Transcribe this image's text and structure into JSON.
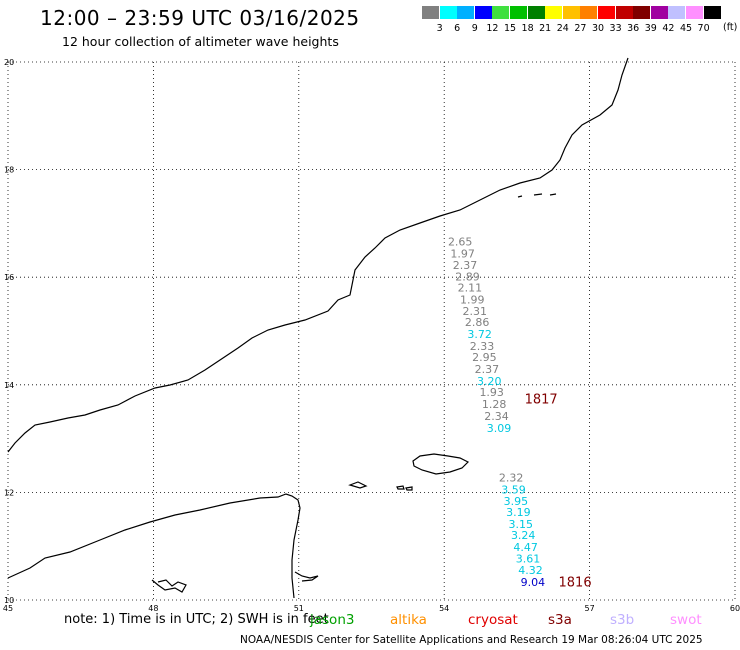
{
  "header": {
    "title": "12:00 – 23:59 UTC 03/16/2025",
    "subtitle": "12 hour collection of altimeter wave heights"
  },
  "colorbar": {
    "colors": [
      "#808080",
      "#00ffff",
      "#00b0ff",
      "#0000ff",
      "#40e040",
      "#00c000",
      "#008000",
      "#ffff00",
      "#ffc000",
      "#ff8000",
      "#ff0000",
      "#c00000",
      "#800000",
      "#a000a0",
      "#c0c0ff",
      "#ff90ff",
      "#000000"
    ],
    "labels": [
      "3",
      "6",
      "9",
      "12",
      "15",
      "18",
      "21",
      "24",
      "27",
      "30",
      "33",
      "36",
      "39",
      "42",
      "45",
      "70"
    ],
    "unit": "(ft)"
  },
  "map": {
    "lat_ticks": [
      "20",
      "18",
      "16",
      "14",
      "12",
      "10"
    ],
    "lon_ticks": [
      "45",
      "48",
      "51",
      "54",
      "57",
      "60"
    ],
    "lat_range": [
      10,
      20
    ],
    "lon_range": [
      45,
      60
    ]
  },
  "observations": [
    {
      "v": "2.65",
      "c": "#808080",
      "lon": 54.33,
      "lat": 16.59
    },
    {
      "v": "1.97",
      "c": "#808080",
      "lon": 54.38,
      "lat": 16.37
    },
    {
      "v": "2.37",
      "c": "#808080",
      "lon": 54.43,
      "lat": 16.15
    },
    {
      "v": "2.89",
      "c": "#808080",
      "lon": 54.48,
      "lat": 15.94
    },
    {
      "v": "2.11",
      "c": "#808080",
      "lon": 54.53,
      "lat": 15.73
    },
    {
      "v": "1.99",
      "c": "#808080",
      "lon": 54.58,
      "lat": 15.51
    },
    {
      "v": "2.31",
      "c": "#808080",
      "lon": 54.63,
      "lat": 15.3
    },
    {
      "v": "2.86",
      "c": "#808080",
      "lon": 54.68,
      "lat": 15.09
    },
    {
      "v": "3.72",
      "c": "#00c8e0",
      "lon": 54.73,
      "lat": 14.87
    },
    {
      "v": "2.33",
      "c": "#808080",
      "lon": 54.78,
      "lat": 14.65
    },
    {
      "v": "2.95",
      "c": "#808080",
      "lon": 54.83,
      "lat": 14.44
    },
    {
      "v": "2.37",
      "c": "#808080",
      "lon": 54.88,
      "lat": 14.22
    },
    {
      "v": "3.20",
      "c": "#00c8e0",
      "lon": 54.93,
      "lat": 14.0
    },
    {
      "v": "1.93",
      "c": "#808080",
      "lon": 54.98,
      "lat": 13.79
    },
    {
      "v": "1.28",
      "c": "#808080",
      "lon": 55.03,
      "lat": 13.57
    },
    {
      "v": "2.34",
      "c": "#808080",
      "lon": 55.08,
      "lat": 13.35
    },
    {
      "v": "3.09",
      "c": "#00c8e0",
      "lon": 55.13,
      "lat": 13.12
    },
    {
      "v": "2.32",
      "c": "#808080",
      "lon": 55.38,
      "lat": 12.2
    },
    {
      "v": "3.59",
      "c": "#00c8e0",
      "lon": 55.43,
      "lat": 11.98
    },
    {
      "v": "3.95",
      "c": "#00c8e0",
      "lon": 55.48,
      "lat": 11.77
    },
    {
      "v": "3.19",
      "c": "#00c8e0",
      "lon": 55.53,
      "lat": 11.56
    },
    {
      "v": "3.15",
      "c": "#00c8e0",
      "lon": 55.58,
      "lat": 11.34
    },
    {
      "v": "3.24",
      "c": "#00c8e0",
      "lon": 55.63,
      "lat": 11.13
    },
    {
      "v": "4.47",
      "c": "#00c8e0",
      "lon": 55.68,
      "lat": 10.91
    },
    {
      "v": "3.61",
      "c": "#00c8e0",
      "lon": 55.73,
      "lat": 10.7
    },
    {
      "v": "4.32",
      "c": "#00c8e0",
      "lon": 55.78,
      "lat": 10.48
    },
    {
      "v": "9.04",
      "c": "#0000c8",
      "lon": 55.83,
      "lat": 10.26
    }
  ],
  "time_labels": [
    {
      "t": "1817",
      "c": "#800000",
      "lon": 56.0,
      "lat": 13.65
    },
    {
      "t": "1816",
      "c": "#800000",
      "lon": 56.7,
      "lat": 10.25
    }
  ],
  "note": "note:  1) Time is in UTC;  2) SWH is in feet",
  "missions": [
    {
      "name": "jason3",
      "color": "#00a000"
    },
    {
      "name": "altika",
      "color": "#ff9000"
    },
    {
      "name": "cryosat",
      "color": "#e00000"
    },
    {
      "name": "s3a",
      "color": "#800000"
    },
    {
      "name": "s3b",
      "color": "#c0b0ff"
    },
    {
      "name": "swot",
      "color": "#ff90ff"
    }
  ],
  "credit": "NOAA/NESDIS Center for Satellite Applications and Research   19 Mar 08:26:04 UTC 2025"
}
